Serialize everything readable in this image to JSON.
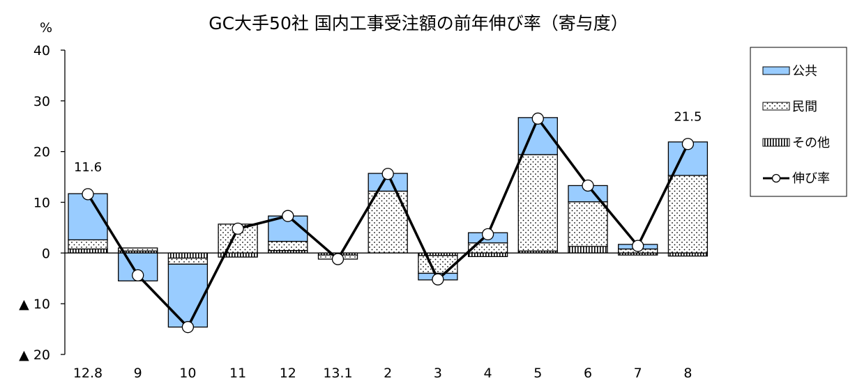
{
  "chart_data": {
    "type": "bar",
    "title": "GC大手50社 国内工事受注額の前年伸び率（寄与度）",
    "ylabel": "%",
    "ylim": [
      -20,
      40
    ],
    "y_ticks": [
      40,
      30,
      20,
      10,
      0,
      -10,
      -20
    ],
    "y_tick_labels": [
      "40",
      "30",
      "20",
      "10",
      "0",
      "▲ 10",
      "▲ 20"
    ],
    "categories": [
      "12.8",
      "9",
      "10",
      "11",
      "12",
      "13.1",
      "2",
      "3",
      "4",
      "5",
      "6",
      "7",
      "8"
    ],
    "series": [
      {
        "name": "公共",
        "kind": "bar",
        "color": "#99ccff",
        "values": [
          9.1,
          -5.5,
          -12.4,
          0,
          5.0,
          0,
          3.5,
          -1.3,
          2.0,
          7.3,
          3.2,
          0.9,
          6.6
        ]
      },
      {
        "name": "民間",
        "kind": "bar",
        "values": [
          1.8,
          0.6,
          -1.2,
          5.7,
          1.8,
          -0.8,
          12.2,
          -3.5,
          2.0,
          19.0,
          8.8,
          0.8,
          15.3
        ]
      },
      {
        "name": "その他",
        "kind": "bar",
        "values": [
          0.8,
          0.4,
          -1.0,
          -0.8,
          0.5,
          -0.4,
          0,
          -0.5,
          -0.7,
          0.4,
          1.3,
          -0.4,
          -0.6
        ]
      },
      {
        "name": "伸び率",
        "kind": "line",
        "values": [
          11.6,
          -4.4,
          -14.6,
          4.8,
          7.3,
          -1.2,
          15.6,
          -5.2,
          3.7,
          26.5,
          13.3,
          1.4,
          21.5
        ]
      }
    ],
    "data_labels": [
      {
        "index": 0,
        "text": "11.6"
      },
      {
        "index": 12,
        "text": "21.5"
      }
    ],
    "legend_position": "right",
    "grid": false
  }
}
